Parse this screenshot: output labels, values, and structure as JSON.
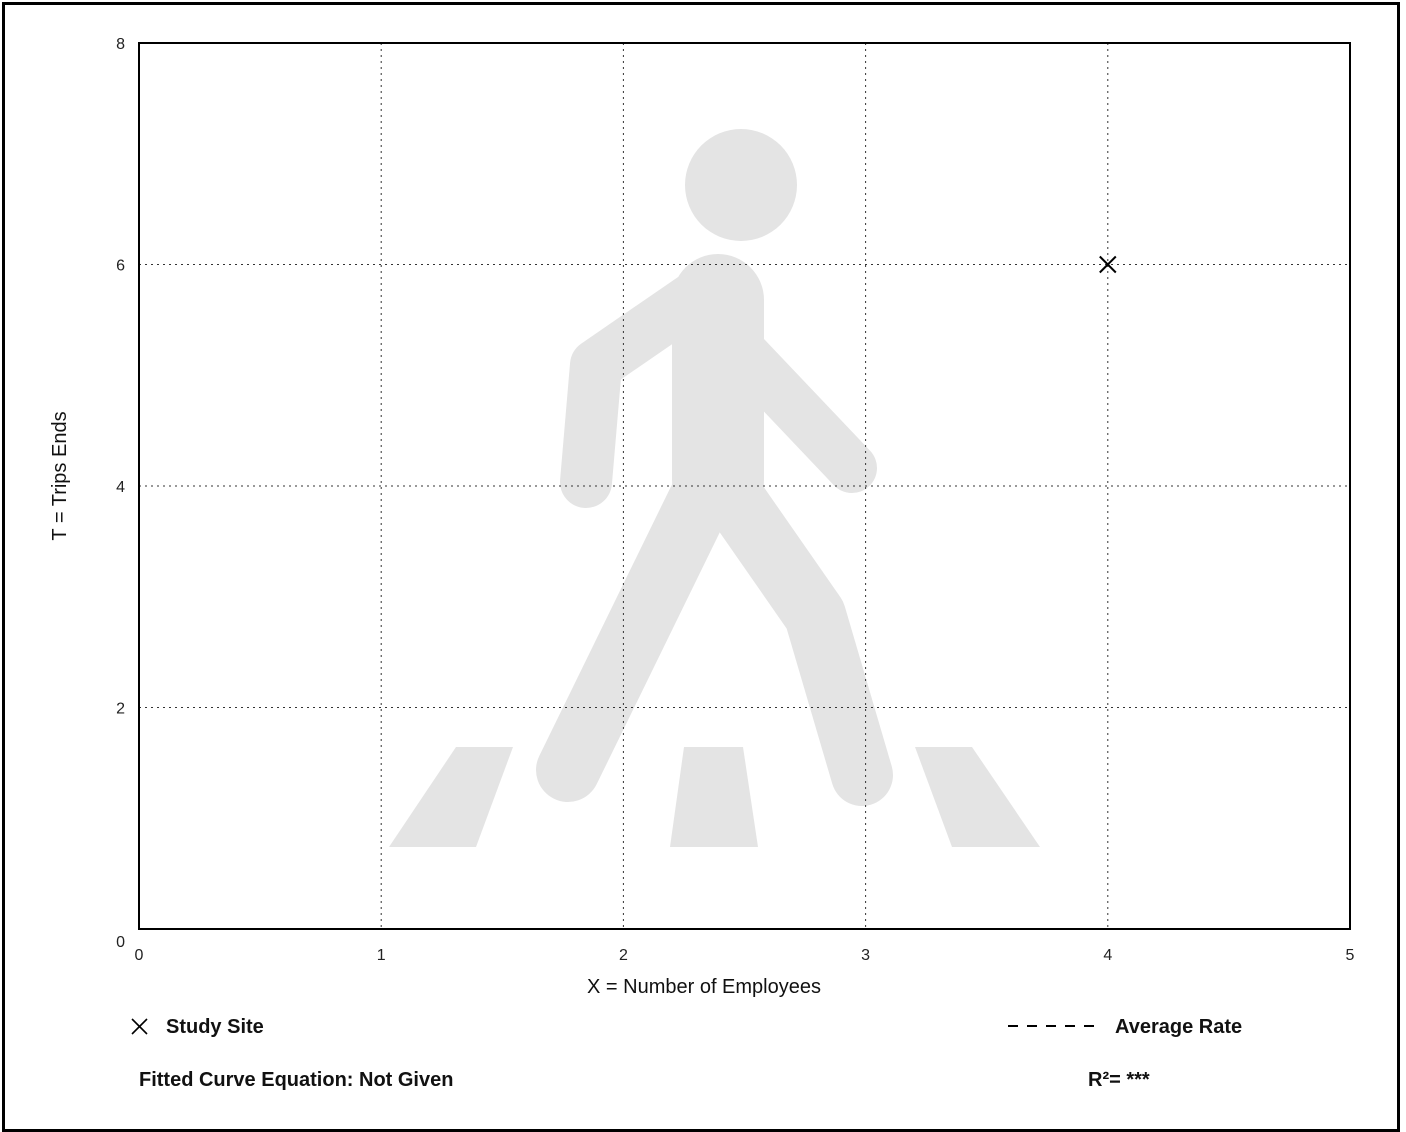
{
  "chart_data": {
    "type": "scatter",
    "xlabel": "X = Number of Employees",
    "ylabel": "T = Trips Ends",
    "xlim": [
      0,
      5
    ],
    "ylim": [
      0,
      8
    ],
    "x_ticks": [
      0,
      1,
      2,
      3,
      4,
      5
    ],
    "y_ticks": [
      0,
      2,
      4,
      6,
      8
    ],
    "grid": true,
    "legend_placement": "bottom",
    "series": [
      {
        "name": "Study Site",
        "marker": "x",
        "points": [
          {
            "x": 4,
            "y": 6
          }
        ]
      }
    ],
    "legend": {
      "study_site": "Study Site",
      "average_rate": "Average Rate"
    },
    "annotations": {
      "fitted_curve": "Fitted Curve Equation: Not Given",
      "r_squared": "R²= ***"
    },
    "watermark_icon": "pedestrian-crossing-icon",
    "colors": {
      "watermark": "#e4e4e4",
      "grid": "#333333",
      "marker": "#000000"
    }
  }
}
